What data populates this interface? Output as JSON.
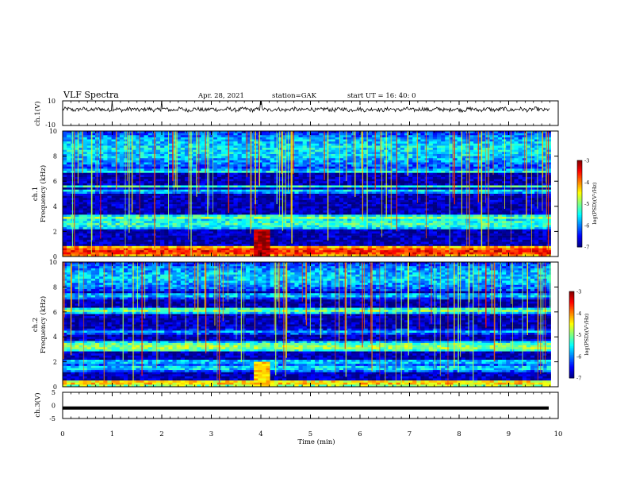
{
  "header": {
    "title": "VLF Spectra",
    "date": "Apr. 28, 2021",
    "station": "station=GAK",
    "start": "start  UT =   16: 40: 0"
  },
  "chart_data": [
    {
      "type": "line",
      "panel": "ch1-waveform",
      "ylabel": "ch.1(V)",
      "ylim": [
        -10,
        10
      ],
      "yticks": [
        10,
        -10
      ],
      "xlim": [
        0,
        10
      ],
      "series": [
        {
          "values_summary": "noise around 3 V, range about 1–5 V, spikes near 1.0, 2.0, 4.0 min",
          "color": "#000000"
        }
      ]
    },
    {
      "type": "heatmap",
      "panel": "ch1-spectrogram",
      "ylabel": "ch.1",
      "ylabel2": "Frequency  (kHz)",
      "ylim": [
        0,
        10
      ],
      "yticks": [
        0,
        2,
        4,
        6,
        8,
        10
      ],
      "xlim": [
        0,
        9.85
      ],
      "colorbar": {
        "label": "log(PSD)(V²/Hz)",
        "range": [
          -7,
          -3
        ],
        "ticks": [
          "-3",
          "-4",
          "-5",
          "-6",
          "-7"
        ]
      },
      "bands_khz": [
        {
          "f": 0.4,
          "width": 0.8,
          "level": -3.6
        },
        {
          "f": 1.0,
          "width": 0.15,
          "level": -4.8
        },
        {
          "f": 2.6,
          "width": 1.0,
          "level": -5.3
        },
        {
          "f": 3.1,
          "width": 0.4,
          "level": -5.0
        },
        {
          "f": 5.2,
          "width": 0.3,
          "level": -5.5
        },
        {
          "f": 5.6,
          "width": 0.3,
          "level": -5.3
        },
        {
          "f": 6.8,
          "width": 0.3,
          "level": -5.4
        },
        {
          "f": 8.5,
          "width": 3.0,
          "level": -5.6
        }
      ],
      "event": {
        "time_min": 4.0,
        "fmax_khz": 2.2,
        "level": -3.2
      }
    },
    {
      "type": "heatmap",
      "panel": "ch2-spectrogram",
      "ylabel": "ch.2",
      "ylabel2": "Frequency  (kHz)",
      "ylim": [
        0,
        10
      ],
      "yticks": [
        0,
        2,
        4,
        6,
        8,
        10
      ],
      "xlim": [
        0,
        9.85
      ],
      "colorbar": {
        "label": "log(PSD)(V²/Hz)",
        "range": [
          -7,
          -3
        ],
        "ticks": [
          "-3",
          "-4",
          "-5",
          "-6",
          "-7"
        ]
      },
      "bands_khz": [
        {
          "f": 0.3,
          "width": 0.5,
          "level": -4.3
        },
        {
          "f": 1.5,
          "width": 0.6,
          "level": -5.6
        },
        {
          "f": 2.0,
          "width": 0.2,
          "level": -5.2
        },
        {
          "f": 3.2,
          "width": 0.8,
          "level": -4.9
        },
        {
          "f": 4.4,
          "width": 0.4,
          "level": -5.8
        },
        {
          "f": 6.1,
          "width": 0.4,
          "level": -5.0
        },
        {
          "f": 7.3,
          "width": 0.5,
          "level": -5.7
        },
        {
          "f": 8.8,
          "width": 2.4,
          "level": -5.7
        }
      ],
      "event": {
        "time_min": 4.0,
        "fmax_khz": 2.0,
        "level": -4.3
      }
    },
    {
      "type": "line",
      "panel": "ch3-waveform",
      "ylabel": "ch.3(V)",
      "ylim": [
        -5,
        5
      ],
      "yticks": [
        5,
        0,
        -5
      ],
      "xlabel": "Time  (min)",
      "xlim": [
        0,
        10
      ],
      "xticks": [
        0,
        1,
        2,
        3,
        4,
        5,
        6,
        7,
        8,
        9,
        10
      ],
      "series": [
        {
          "values_summary": "constant near -1 V",
          "value": -1,
          "color": "#000000"
        }
      ]
    }
  ]
}
